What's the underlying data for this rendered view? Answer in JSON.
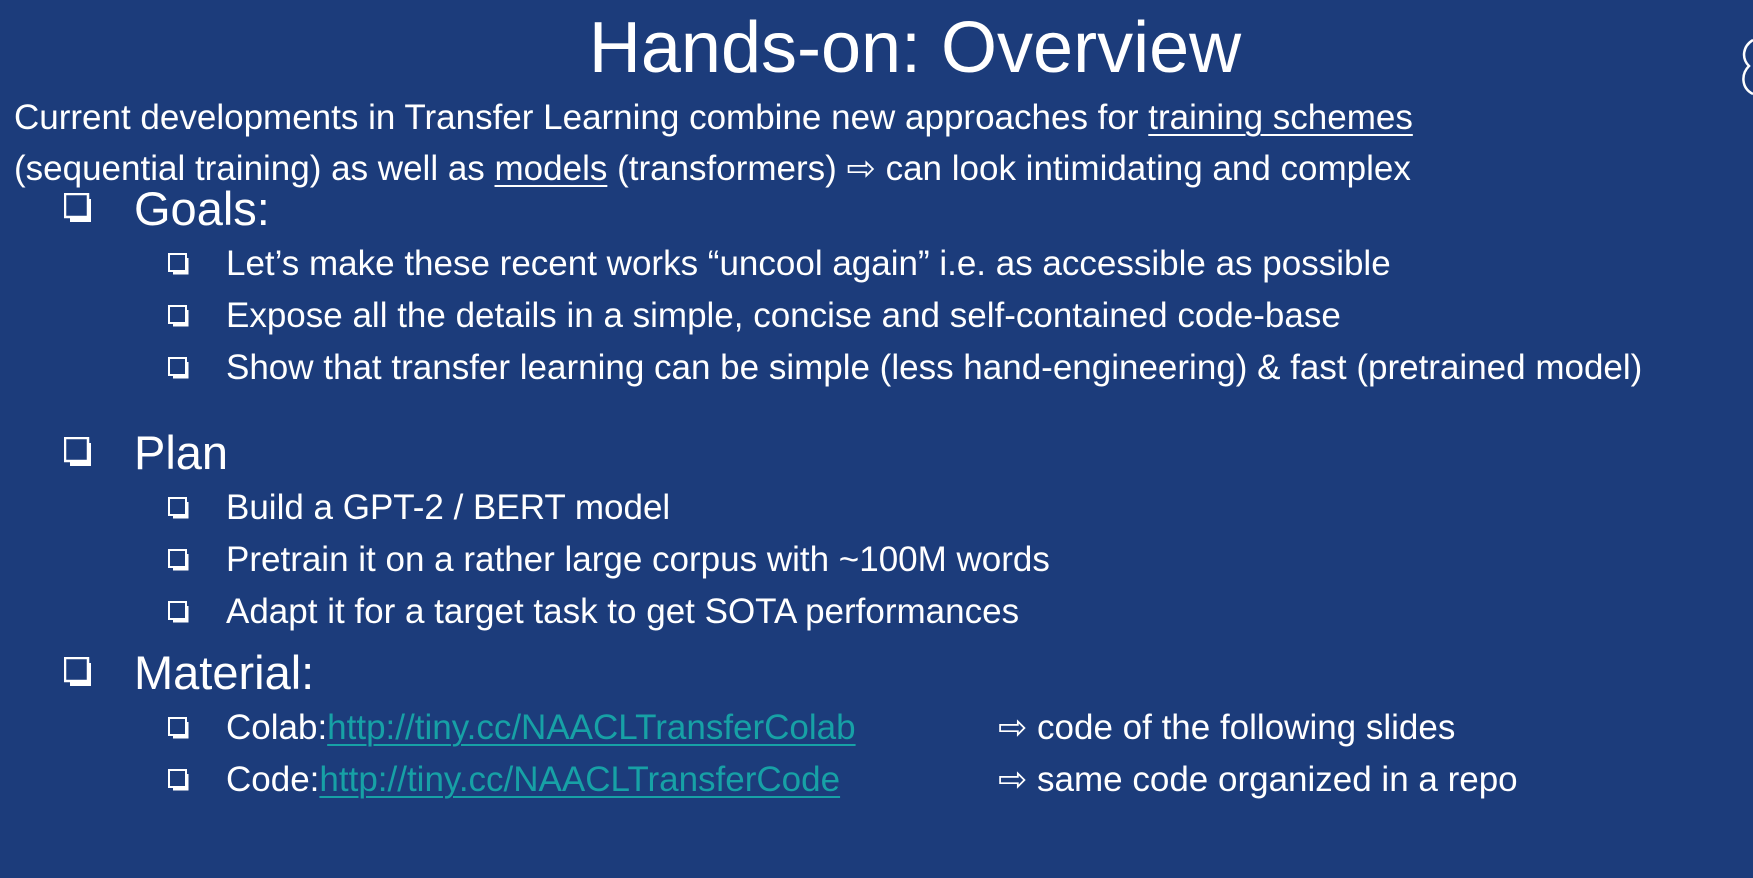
{
  "title": "Hands-on: Overview",
  "intro": {
    "line1_pre": "Current developments in Transfer Learning combine new approaches for ",
    "line1_link": "training schemes",
    "line2_pre": "(sequential training) as well as ",
    "line2_link": "models",
    "line2_post": " (transformers) ⇨ can look intimidating and complex"
  },
  "goals": {
    "heading": "Goals:",
    "items": [
      "Let’s make these recent works “uncool again” i.e. as accessible as possible",
      "Expose all the details in a simple, concise and self-contained code-base",
      "Show that transfer learning can be simple (less hand-engineering) & fast (pretrained model)"
    ]
  },
  "plan": {
    "heading": "Plan",
    "items": [
      "Build a GPT-2 / BERT model",
      "Pretrain it on a rather large corpus with ~100M words",
      "Adapt it for a target task to get SOTA performances"
    ]
  },
  "material": {
    "heading": "Material:",
    "items": [
      {
        "label": "Colab: ",
        "url": "http://tiny.cc/NAACLTransferColab",
        "note": "⇨ code of the following slides"
      },
      {
        "label": "Code: ",
        "url": "http://tiny.cc/NAACLTransferCode",
        "note": "⇨ same code organized in a repo"
      }
    ]
  },
  "colors": {
    "background": "#1c3c7b",
    "text": "#ffffff",
    "link": "#17a1a6"
  }
}
